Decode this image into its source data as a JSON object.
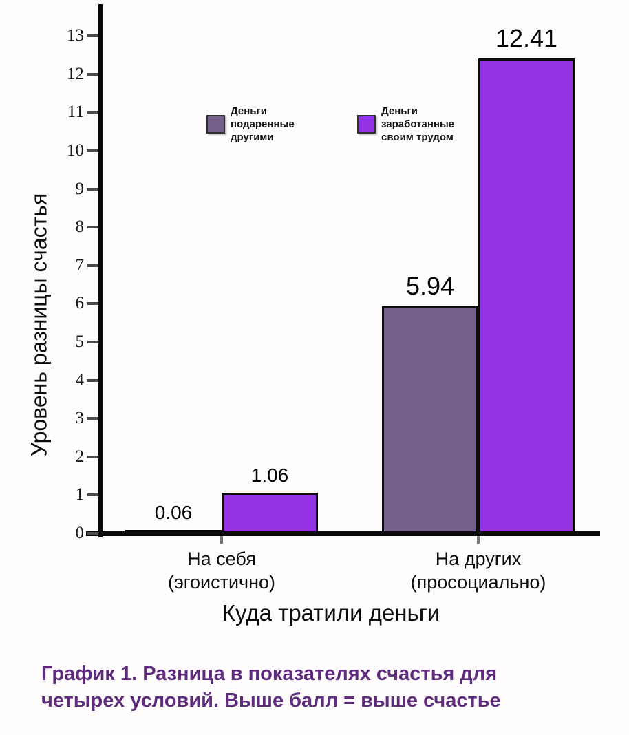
{
  "chart_data": {
    "type": "bar",
    "title": "",
    "xlabel": "Куда тратили деньги",
    "ylabel": "Уровень разницы счастья",
    "categories": [
      "На себя\n(эгоистично)",
      "На других\n(просоциально)"
    ],
    "series": [
      {
        "name": "Деньги подаренные другими",
        "color": "#755f8b",
        "values": [
          0.06,
          5.94
        ],
        "labels": [
          "0.06",
          "5.94"
        ]
      },
      {
        "name": "Деньги заработанные своим трудом",
        "color": "#9333e2",
        "values": [
          1.06,
          12.41
        ],
        "labels": [
          "1.06",
          "12.41"
        ]
      }
    ],
    "yticks": [
      0,
      1,
      2,
      3,
      4,
      5,
      6,
      7,
      8,
      9,
      10,
      11,
      12,
      13
    ],
    "ylim": [
      0,
      13.8
    ],
    "grid": false,
    "legend_position": "top-center"
  },
  "caption": {
    "line1": "График 1. Разница в показателях счастья для",
    "line2": "четырех условий. Выше балл = выше счастье",
    "color": "#5e2b7d"
  }
}
